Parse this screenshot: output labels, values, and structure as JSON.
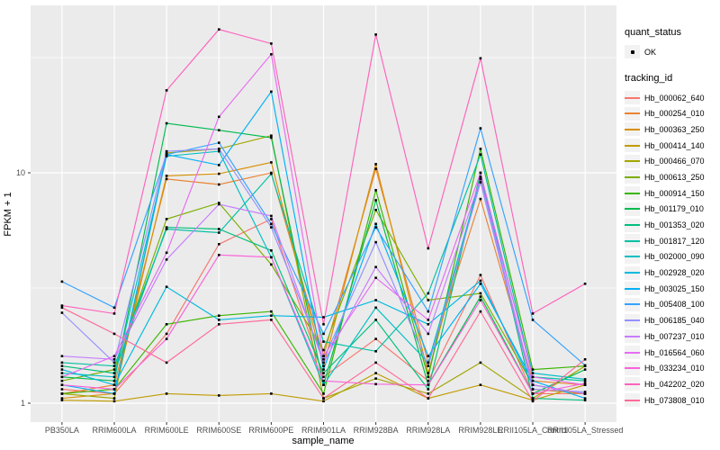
{
  "chart_data": {
    "type": "line",
    "title": "",
    "xlabel": "sample_name",
    "ylabel": "FPKM + 1",
    "y_scale": "log10",
    "y_axis_ticks": [
      1,
      10
    ],
    "y_minor_gridlines": [
      3.162,
      31.62
    ],
    "ylim": [
      0.83,
      52
    ],
    "grid": "on",
    "panel_background": "#EBEBEB",
    "gridline_color": "#FFFFFF",
    "axis_text_color": "#4D4D4D",
    "point_shape": "small-black-square",
    "legend_position": "right",
    "legend": {
      "quant_status_title": "quant_status",
      "quant_items": [
        "OK"
      ],
      "tracking_id_title": "tracking_id"
    },
    "x_categories": [
      "PB350LA",
      "RRIM600LA",
      "RRIM600LE",
      "RRIM600SE",
      "RRIM600PE",
      "RRIM901LA",
      "RRIM928BA",
      "RRIM928LA",
      "RRIM928LE",
      "RRII105LA_Control",
      "RRII105LA_Stressed"
    ],
    "series": [
      {
        "tracking_id": "Hb_000062_640",
        "quant_status": "OK",
        "color": "#F8766D",
        "values": [
          1.15,
          1.1,
          2.0,
          4.9,
          6.3,
          1.3,
          1.9,
          1.25,
          3.6,
          1.1,
          1.1
        ]
      },
      {
        "tracking_id": "Hb_000254_010",
        "quant_status": "OK",
        "color": "#EA8331",
        "values": [
          1.1,
          1.2,
          9.4,
          8.9,
          10.0,
          1.6,
          10.4,
          1.5,
          7.7,
          1.25,
          1.2
        ]
      },
      {
        "tracking_id": "Hb_000363_250",
        "quant_status": "OK",
        "color": "#D89000",
        "values": [
          1.05,
          1.1,
          9.7,
          9.9,
          11.1,
          1.45,
          10.9,
          1.35,
          9.6,
          1.15,
          1.1
        ]
      },
      {
        "tracking_id": "Hb_000414_140",
        "quant_status": "OK",
        "color": "#C09B00",
        "values": [
          1.03,
          1.02,
          1.1,
          1.08,
          1.1,
          1.02,
          1.35,
          1.05,
          1.2,
          1.03,
          1.2
        ]
      },
      {
        "tracking_id": "Hb_000466_070",
        "quant_status": "OK",
        "color": "#A3A500",
        "values": [
          1.1,
          1.05,
          12.2,
          12.7,
          14.5,
          1.05,
          1.28,
          1.1,
          1.5,
          1.05,
          1.45
        ]
      },
      {
        "tracking_id": "Hb_000613_250",
        "quant_status": "OK",
        "color": "#7CAE00",
        "values": [
          1.25,
          1.4,
          6.3,
          7.4,
          4.0,
          1.7,
          6.9,
          2.8,
          3.0,
          1.2,
          1.1
        ]
      },
      {
        "tracking_id": "Hb_000914_150",
        "quant_status": "OK",
        "color": "#39B600",
        "values": [
          1.1,
          1.15,
          2.2,
          2.4,
          2.5,
          1.1,
          8.4,
          1.3,
          12.7,
          1.4,
          1.45
        ]
      },
      {
        "tracking_id": "Hb_001179_010",
        "quant_status": "OK",
        "color": "#00BB4E",
        "values": [
          1.3,
          1.25,
          16.4,
          15.3,
          14.2,
          1.2,
          7.6,
          1.2,
          2.9,
          1.1,
          1.4
        ]
      },
      {
        "tracking_id": "Hb_001353_020",
        "quant_status": "OK",
        "color": "#00BF7D",
        "values": [
          1.45,
          1.35,
          5.8,
          5.7,
          4.6,
          1.35,
          2.3,
          1.15,
          10.0,
          1.05,
          1.03
        ]
      },
      {
        "tracking_id": "Hb_001817_120",
        "quant_status": "OK",
        "color": "#00C1A3",
        "values": [
          1.5,
          1.45,
          5.7,
          5.5,
          9.9,
          1.85,
          1.68,
          3.0,
          12.0,
          1.3,
          1.25
        ]
      },
      {
        "tracking_id": "Hb_002000_090",
        "quant_status": "OK",
        "color": "#00BFC4",
        "values": [
          1.35,
          1.3,
          11.8,
          12.4,
          4.3,
          1.2,
          2.6,
          1.5,
          9.4,
          1.35,
          1.27
        ]
      },
      {
        "tracking_id": "Hb_002928_020",
        "quant_status": "OK",
        "color": "#00BAE0",
        "values": [
          1.4,
          1.2,
          3.2,
          2.3,
          2.4,
          2.36,
          2.8,
          2.2,
          3.4,
          1.2,
          1.1
        ]
      },
      {
        "tracking_id": "Hb_003025_150",
        "quant_status": "OK",
        "color": "#00B0F6",
        "values": [
          1.2,
          1.1,
          12.0,
          10.8,
          22.5,
          1.4,
          6.0,
          1.6,
          3.3,
          1.25,
          1.05
        ]
      },
      {
        "tracking_id": "Hb_005408_100",
        "quant_status": "OK",
        "color": "#35A2FF",
        "values": [
          3.37,
          2.6,
          12.0,
          13.5,
          6.0,
          2.0,
          5.8,
          2.5,
          15.6,
          2.3,
          1.46
        ]
      },
      {
        "tracking_id": "Hb_006185_040",
        "quant_status": "OK",
        "color": "#9590FF",
        "values": [
          2.47,
          1.5,
          12.4,
          12.7,
          5.8,
          1.55,
          5.0,
          1.45,
          9.1,
          1.15,
          1.12
        ]
      },
      {
        "tracking_id": "Hb_007237_010",
        "quant_status": "OK",
        "color": "#C77CFF",
        "values": [
          1.6,
          1.55,
          4.2,
          7.3,
          6.5,
          1.5,
          3.9,
          2.0,
          9.4,
          1.2,
          1.1
        ]
      },
      {
        "tracking_id": "Hb_016564_060",
        "quant_status": "OK",
        "color": "#E76BF3",
        "values": [
          1.3,
          1.6,
          4.5,
          17.5,
          32.7,
          1.6,
          3.5,
          2.3,
          10.0,
          1.3,
          1.2
        ]
      },
      {
        "tracking_id": "Hb_033234_010",
        "quant_status": "OK",
        "color": "#FA62DB",
        "values": [
          1.2,
          1.15,
          1.9,
          4.4,
          4.3,
          1.25,
          1.21,
          1.2,
          2.8,
          1.1,
          1.22
        ]
      },
      {
        "tracking_id": "Hb_042202_020",
        "quant_status": "OK",
        "color": "#FF62BC",
        "values": [
          2.65,
          2.45,
          22.8,
          41.9,
          36.4,
          2.2,
          39.8,
          4.7,
          31.4,
          2.45,
          3.3
        ]
      },
      {
        "tracking_id": "Hb_073808_010",
        "quant_status": "OK",
        "color": "#FF6A98",
        "values": [
          2.6,
          2.0,
          1.5,
          2.2,
          2.3,
          1.05,
          1.5,
          1.05,
          2.5,
          1.02,
          1.55
        ]
      }
    ]
  }
}
